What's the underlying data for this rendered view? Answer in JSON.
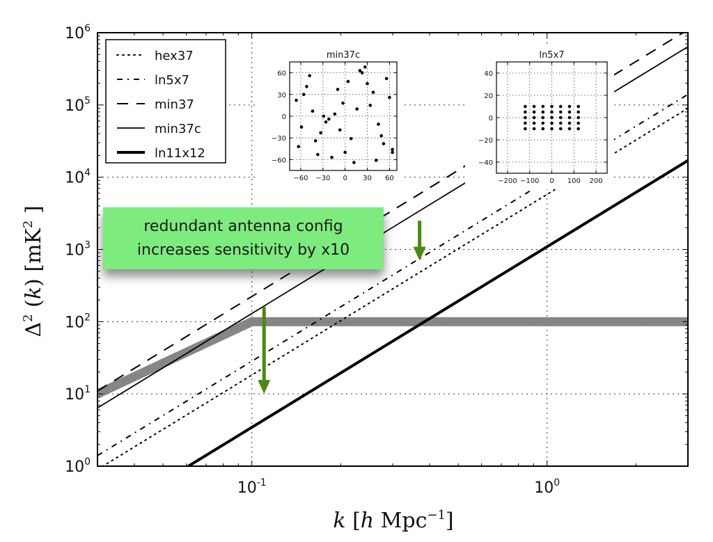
{
  "chart_data": {
    "type": "line",
    "xscale": "log",
    "yscale": "log",
    "xlim": [
      0.03,
      3
    ],
    "ylim": [
      1,
      1000000
    ],
    "grid": true,
    "xlabel": "k [h Mpc^-1]",
    "ylabel": "Δ^2 (k) [mK^2]",
    "xticks": [
      {
        "value": 0.1,
        "base": "10",
        "exp": "-1"
      },
      {
        "value": 1,
        "base": "10",
        "exp": "0"
      }
    ],
    "yticks": [
      {
        "value": 1,
        "base": "10",
        "exp": "0"
      },
      {
        "value": 10,
        "base": "10",
        "exp": "1"
      },
      {
        "value": 100,
        "base": "10",
        "exp": "2"
      },
      {
        "value": 1000,
        "base": "10",
        "exp": "3"
      },
      {
        "value": 10000,
        "base": "10",
        "exp": "4"
      },
      {
        "value": 100000,
        "base": "10",
        "exp": "5"
      },
      {
        "value": 1000000,
        "base": "10",
        "exp": "6"
      }
    ],
    "legend_position": "top-left",
    "series": [
      {
        "name": "hex37",
        "style": "dotted",
        "points": [
          [
            0.03,
            0.9
          ],
          [
            3,
            90000
          ]
        ]
      },
      {
        "name": "ln5x7",
        "style": "dashdot",
        "points": [
          [
            0.03,
            1.4
          ],
          [
            3,
            140000
          ]
        ]
      },
      {
        "name": "min37",
        "style": "dashed",
        "points": [
          [
            0.03,
            11
          ],
          [
            3,
            1100000
          ]
        ]
      },
      {
        "name": "min37c",
        "style": "solid",
        "points": [
          [
            0.03,
            6.4
          ],
          [
            3,
            640000
          ]
        ]
      },
      {
        "name": "ln11x12",
        "style": "solid-thick",
        "points": [
          [
            0.03,
            0.17
          ],
          [
            3,
            17000
          ]
        ]
      }
    ],
    "band": {
      "name": "signal-model",
      "color": "#808080",
      "points": [
        [
          0.03,
          10
        ],
        [
          0.1,
          100
        ],
        [
          3,
          100
        ]
      ]
    },
    "annotation": {
      "lines": [
        "redundant antenna config",
        "increases sensitivity by x10"
      ],
      "box_color": "#7eeb7e",
      "arrow_color": "#4a8a12",
      "arrows": [
        {
          "k": 0.11,
          "from": 160,
          "to": 10
        },
        {
          "k": 0.37,
          "from": 2500,
          "to": 700
        }
      ]
    },
    "insets": [
      {
        "title": "min37c",
        "xlim": [
          -75,
          70
        ],
        "ylim": [
          -75,
          75
        ],
        "xticks": [
          -60,
          -30,
          0,
          30,
          60
        ],
        "yticks": [
          -60,
          -30,
          0,
          30,
          60
        ],
        "points": [
          [
            -66,
            22
          ],
          [
            -48,
            56
          ],
          [
            -52,
            41
          ],
          [
            -56,
            30
          ],
          [
            -44,
            7
          ],
          [
            -59,
            -15
          ],
          [
            -63,
            -42
          ],
          [
            -40,
            -34
          ],
          [
            -37,
            -53
          ],
          [
            -33,
            -23
          ],
          [
            -29,
            0
          ],
          [
            -26,
            -8
          ],
          [
            -22,
            -4
          ],
          [
            -14,
            3
          ],
          [
            -10,
            37
          ],
          [
            -7,
            -19
          ],
          [
            -18,
            -57
          ],
          [
            -3,
            18
          ],
          [
            0,
            -50
          ],
          [
            4,
            48
          ],
          [
            8,
            -31
          ],
          [
            12,
            -64
          ],
          [
            16,
            10
          ],
          [
            20,
            63
          ],
          [
            23,
            60
          ],
          [
            27,
            68
          ],
          [
            30,
            45
          ],
          [
            34,
            15
          ],
          [
            38,
            33
          ],
          [
            42,
            -61
          ],
          [
            45,
            -11
          ],
          [
            49,
            -27
          ],
          [
            52,
            -38
          ],
          [
            56,
            52
          ],
          [
            60,
            26
          ],
          [
            64,
            -46
          ],
          [
            64,
            -50
          ]
        ]
      },
      {
        "title": "ln5x7",
        "xlim": [
          -250,
          250
        ],
        "ylim": [
          -50,
          50
        ],
        "xticks": [
          -200,
          -100,
          0,
          100,
          200
        ],
        "yticks": [
          -40,
          -20,
          0,
          20,
          40
        ],
        "points": [
          [
            -120,
            10
          ],
          [
            -80,
            10
          ],
          [
            -40,
            10
          ],
          [
            0,
            10
          ],
          [
            40,
            10
          ],
          [
            80,
            10
          ],
          [
            120,
            10
          ],
          [
            -120,
            5
          ],
          [
            -80,
            5
          ],
          [
            -40,
            5
          ],
          [
            0,
            5
          ],
          [
            40,
            5
          ],
          [
            80,
            5
          ],
          [
            120,
            5
          ],
          [
            -120,
            0
          ],
          [
            -80,
            0
          ],
          [
            -40,
            0
          ],
          [
            0,
            0
          ],
          [
            40,
            0
          ],
          [
            80,
            0
          ],
          [
            120,
            0
          ],
          [
            -120,
            -5
          ],
          [
            -80,
            -5
          ],
          [
            -40,
            -5
          ],
          [
            0,
            -5
          ],
          [
            40,
            -5
          ],
          [
            80,
            -5
          ],
          [
            120,
            -5
          ],
          [
            -120,
            -10
          ],
          [
            -80,
            -10
          ],
          [
            -40,
            -10
          ],
          [
            0,
            -10
          ],
          [
            40,
            -10
          ],
          [
            80,
            -10
          ],
          [
            120,
            -10
          ]
        ]
      }
    ]
  }
}
